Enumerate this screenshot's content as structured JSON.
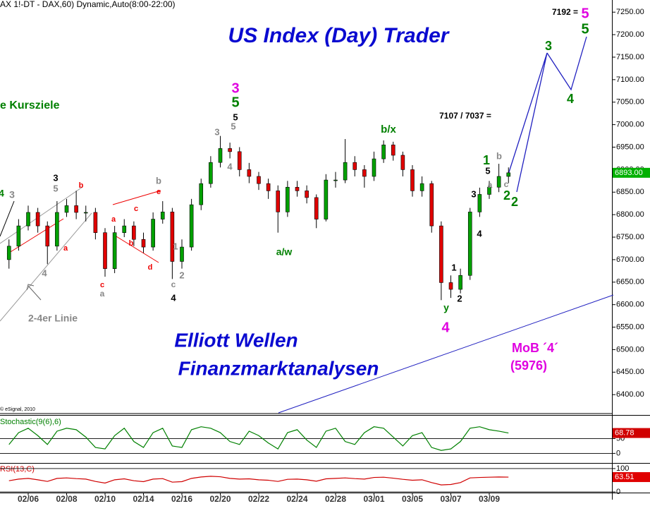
{
  "chart_data": [
    {
      "type": "candlestick",
      "header": "AX 1!-DT - DAX,60) Dynamic,Auto(8:00-22:00)",
      "title": "US Index (Day) Trader",
      "categories": [
        null,
        null,
        "02/06",
        null,
        null,
        null,
        "02/08",
        null,
        null,
        null,
        "02/10",
        null,
        null,
        null,
        "02/14",
        null,
        null,
        null,
        "02/16",
        null,
        null,
        null,
        "02/20",
        null,
        null,
        null,
        "02/22",
        null,
        null,
        null,
        "02/24",
        null,
        null,
        null,
        "02/28",
        null,
        null,
        null,
        "03/01",
        null,
        null,
        null,
        "03/05",
        null,
        null,
        null,
        "03/07",
        null,
        null,
        null,
        "03/09",
        null,
        null
      ],
      "open": [
        6700,
        6730,
        6775,
        6805,
        6775,
        6730,
        6805,
        6820,
        6805,
        6805,
        6760,
        6680,
        6760,
        6775,
        6745,
        6728,
        6790,
        6806,
        6696,
        6728,
        6822,
        6869,
        6916,
        6947,
        6940,
        6900,
        6885,
        6869,
        6853,
        6806,
        6861,
        6853,
        6838,
        6790,
        6877,
        6877,
        6916,
        6900,
        6885,
        6924,
        6955,
        6932,
        6900,
        6853,
        6869,
        6775,
        6649,
        6634,
        6665,
        6806,
        6845,
        6861,
        6885
      ],
      "high": [
        6745,
        6790,
        6820,
        6815,
        6785,
        6830,
        6835,
        6853,
        6820,
        6815,
        6770,
        6775,
        6790,
        6785,
        6760,
        6805,
        6830,
        6815,
        6745,
        6835,
        6880,
        6930,
        6975,
        6960,
        6950,
        6915,
        6895,
        6880,
        6865,
        6875,
        6875,
        6865,
        6845,
        6890,
        6895,
        6968,
        6930,
        6910,
        6940,
        6965,
        6962,
        6940,
        6910,
        6885,
        6875,
        6785,
        6665,
        6680,
        6815,
        6860,
        6875,
        6913,
        6905
      ],
      "low": [
        6680,
        6720,
        6765,
        6760,
        6690,
        6720,
        6795,
        6790,
        6785,
        6745,
        6662,
        6670,
        6750,
        6730,
        6715,
        6720,
        6780,
        6657,
        6680,
        6720,
        6810,
        6860,
        6905,
        6925,
        6885,
        6870,
        6855,
        6835,
        6760,
        6795,
        6840,
        6825,
        6770,
        6785,
        6860,
        6870,
        6885,
        6860,
        6875,
        6915,
        6920,
        6885,
        6840,
        6840,
        6760,
        6610,
        6615,
        6625,
        6655,
        6795,
        6835,
        6850,
        6870
      ],
      "close": [
        6730,
        6775,
        6805,
        6775,
        6730,
        6805,
        6820,
        6805,
        6805,
        6760,
        6680,
        6760,
        6775,
        6745,
        6728,
        6790,
        6806,
        6696,
        6728,
        6822,
        6869,
        6916,
        6947,
        6940,
        6900,
        6885,
        6869,
        6853,
        6806,
        6861,
        6853,
        6838,
        6790,
        6877,
        6877,
        6916,
        6900,
        6885,
        6924,
        6955,
        6932,
        6900,
        6853,
        6869,
        6775,
        6649,
        6634,
        6665,
        6806,
        6845,
        6861,
        6885,
        6893
      ],
      "up_color": "#00a000",
      "down_color": "#e00000",
      "price_label": "6893.00",
      "ylim": [
        6358,
        7277
      ],
      "yticks": [
        {
          "value": 7250,
          "label": "7250.00"
        },
        {
          "value": 7200,
          "label": "7200.00"
        },
        {
          "value": 7150,
          "label": "7150.00"
        },
        {
          "value": 7100,
          "label": "7100.00"
        },
        {
          "value": 7050,
          "label": "7050.00"
        },
        {
          "value": 7000,
          "label": "7000.00"
        },
        {
          "value": 6950,
          "label": "6950.00"
        },
        {
          "value": 6900,
          "label": "6900.00"
        },
        {
          "value": 6850,
          "label": "6850.00"
        },
        {
          "value": 6800,
          "label": "6800.00"
        },
        {
          "value": 6750,
          "label": "6750.00"
        },
        {
          "value": 6700,
          "label": "6700.00"
        },
        {
          "value": 6650,
          "label": "6650.00"
        },
        {
          "value": 6600,
          "label": "6600.00"
        },
        {
          "value": 6550,
          "label": "6550.00"
        },
        {
          "value": 6500,
          "label": "6500.00"
        },
        {
          "value": 6450,
          "label": "6450.00"
        },
        {
          "value": 6400,
          "label": "6400.00"
        }
      ],
      "annotations": [
        "7192 =",
        "5",
        "5",
        "e Kursziele",
        "3",
        "5",
        "5",
        "5",
        "3",
        "4",
        "b/x",
        "7107 / 7037 =",
        "3",
        "4",
        "1",
        "b",
        "5",
        "c",
        "2",
        "a",
        "3",
        "2",
        "4",
        "1",
        "2",
        "y",
        "4",
        "a/w",
        "3",
        "5",
        "b",
        "4",
        "3",
        "a",
        "4",
        "c",
        "a",
        "c",
        "a",
        "b",
        "d",
        "b",
        "e",
        "1",
        "c",
        "2",
        "4",
        "2-4er Linie",
        "Elliott Wellen",
        "Finanzmarktanalysen",
        "MoB ´4´",
        "(5976)",
        "© eSignal, 2010"
      ]
    },
    {
      "type": "line",
      "series": [
        {
          "name": "Stochastic(9(6),6)",
          "color": "#008000",
          "values": [
            30,
            70,
            85,
            60,
            30,
            75,
            85,
            80,
            55,
            20,
            15,
            60,
            85,
            40,
            20,
            70,
            85,
            25,
            20,
            80,
            90,
            85,
            70,
            40,
            30,
            75,
            60,
            35,
            15,
            70,
            80,
            45,
            20,
            75,
            85,
            40,
            30,
            70,
            90,
            85,
            55,
            25,
            60,
            70,
            20,
            10,
            15,
            40,
            85,
            90,
            80,
            75,
            68.78
          ]
        }
      ],
      "ylim": [
        -30,
        125
      ],
      "yticks": [
        0,
        50
      ]
    },
    {
      "type": "line",
      "series": [
        {
          "name": "RSI(13,C)",
          "color": "#d00000",
          "values": [
            48,
            55,
            58,
            52,
            45,
            58,
            60,
            57,
            55,
            45,
            38,
            52,
            56,
            48,
            44,
            55,
            57,
            42,
            44,
            58,
            64,
            67,
            65,
            58,
            55,
            56,
            52,
            50,
            45,
            54,
            55,
            52,
            46,
            56,
            58,
            60,
            57,
            55,
            62,
            63,
            59,
            54,
            50,
            52,
            40,
            30,
            32,
            40,
            60,
            62,
            63,
            64,
            63.51
          ]
        }
      ],
      "ylim": [
        -33,
        118
      ],
      "yticks": [
        0,
        100
      ]
    }
  ]
}
